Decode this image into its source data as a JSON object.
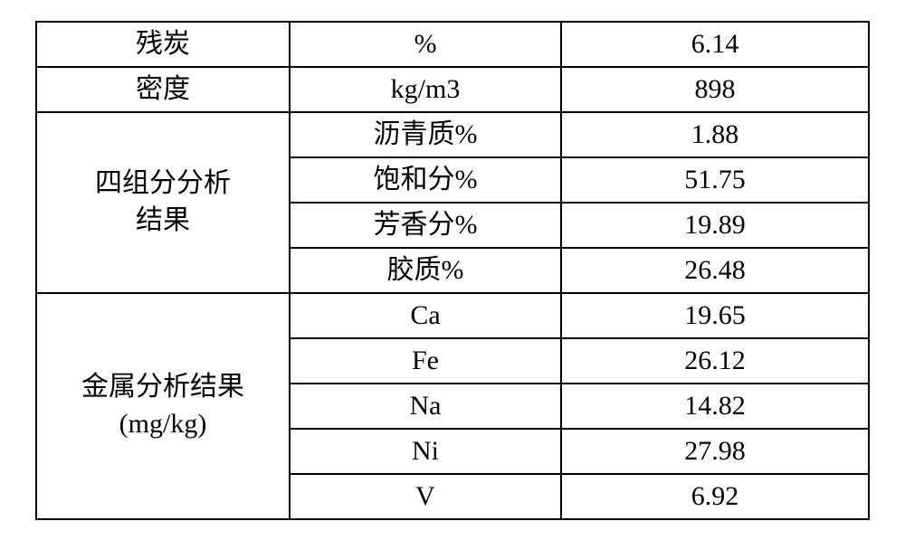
{
  "table": {
    "border_color": "#000000",
    "background_color": "#ffffff",
    "font_family": "SimSun",
    "font_size_pt": 22,
    "text_color": "#000000",
    "rows": [
      {
        "c1": "残炭",
        "c2": "%",
        "c3": "6.14"
      },
      {
        "c1": "密度",
        "c2": "kg/m3",
        "c3": "898"
      }
    ],
    "section_four": {
      "header_line1": "四组分分析",
      "header_line2": "结果",
      "items": [
        {
          "c2": "沥青质%",
          "c3": "1.88"
        },
        {
          "c2": "饱和分%",
          "c3": "51.75"
        },
        {
          "c2": "芳香分%",
          "c3": "19.89"
        },
        {
          "c2": "胶质%",
          "c3": "26.48"
        }
      ]
    },
    "section_metal": {
      "header_line1": "金属分析结果",
      "header_line2": "(mg/kg)",
      "items": [
        {
          "c2": "Ca",
          "c3": "19.65"
        },
        {
          "c2": "Fe",
          "c3": "26.12"
        },
        {
          "c2": "Na",
          "c3": "14.82"
        },
        {
          "c2": "Ni",
          "c3": "27.98"
        },
        {
          "c2": "V",
          "c3": "6.92"
        }
      ]
    }
  }
}
